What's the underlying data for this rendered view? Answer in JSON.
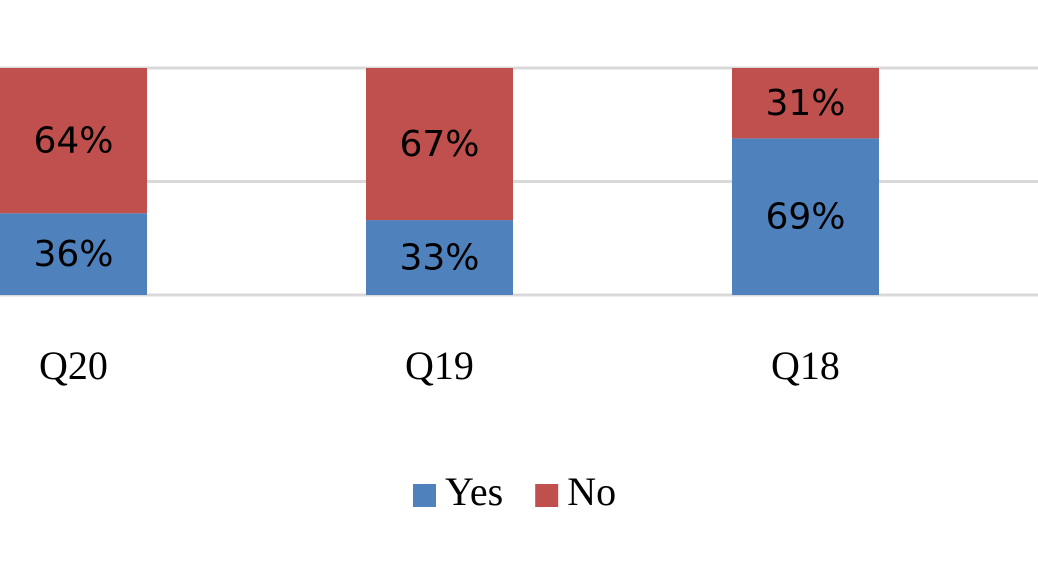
{
  "chart_data": {
    "type": "stacked-bar",
    "categories": [
      "Q20",
      "Q19",
      "Q18"
    ],
    "series": [
      {
        "name": "Yes",
        "color": "#4f81bd",
        "values": [
          36,
          33,
          69
        ],
        "value_labels": [
          "36%",
          "33%",
          "69%"
        ]
      },
      {
        "name": "No",
        "color": "#c0504d",
        "values": [
          64,
          67,
          31
        ],
        "value_labels": [
          "64%",
          "67%",
          "31%"
        ]
      }
    ],
    "ylim": [
      0,
      100
    ],
    "yticks": [
      0,
      50,
      100
    ],
    "grid": true,
    "legend": "bottom"
  }
}
